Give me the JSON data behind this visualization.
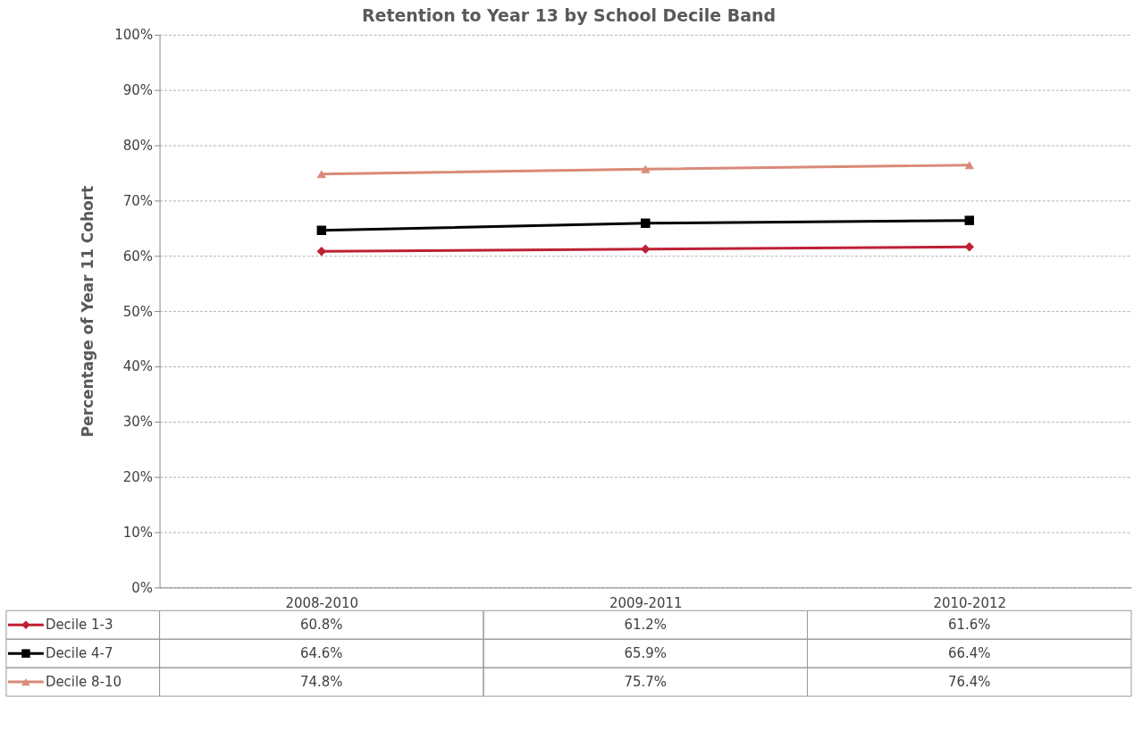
{
  "chart_data": {
    "type": "line",
    "title": "Retention to Year 13 by School Decile Band",
    "ylabel": "Percentage of Year 11 Cohort",
    "categories": [
      "2008-2010",
      "2009-2011",
      "2010-2012"
    ],
    "series": [
      {
        "name": "Decile 1-3",
        "color": "#be2035",
        "marker": "diamond",
        "values": [
          60.8,
          61.2,
          61.6
        ],
        "value_labels": [
          "60.8%",
          "61.2%",
          "61.6%"
        ]
      },
      {
        "name": "Decile 4-7",
        "color": "#000000",
        "marker": "square",
        "values": [
          64.6,
          65.9,
          66.4
        ],
        "value_labels": [
          "64.6%",
          "65.9%",
          "66.4%"
        ]
      },
      {
        "name": "Decile 8-10",
        "color": "#d98a78",
        "marker": "triangle",
        "values": [
          74.8,
          75.7,
          76.4
        ],
        "value_labels": [
          "74.8%",
          "75.7%",
          "76.4%"
        ]
      }
    ],
    "ylim": [
      0,
      100
    ],
    "yticks": [
      {
        "value": 0,
        "label": "0%"
      },
      {
        "value": 10,
        "label": "10%"
      },
      {
        "value": 20,
        "label": "20%"
      },
      {
        "value": 30,
        "label": "30%"
      },
      {
        "value": 40,
        "label": "40%"
      },
      {
        "value": 50,
        "label": "50%"
      },
      {
        "value": 60,
        "label": "60%"
      },
      {
        "value": 70,
        "label": "70%"
      },
      {
        "value": 80,
        "label": "80%"
      },
      {
        "value": 90,
        "label": "90%"
      },
      {
        "value": 100,
        "label": "100%"
      }
    ],
    "grid": "y",
    "legend": "bottom left",
    "line_style": "solid"
  }
}
